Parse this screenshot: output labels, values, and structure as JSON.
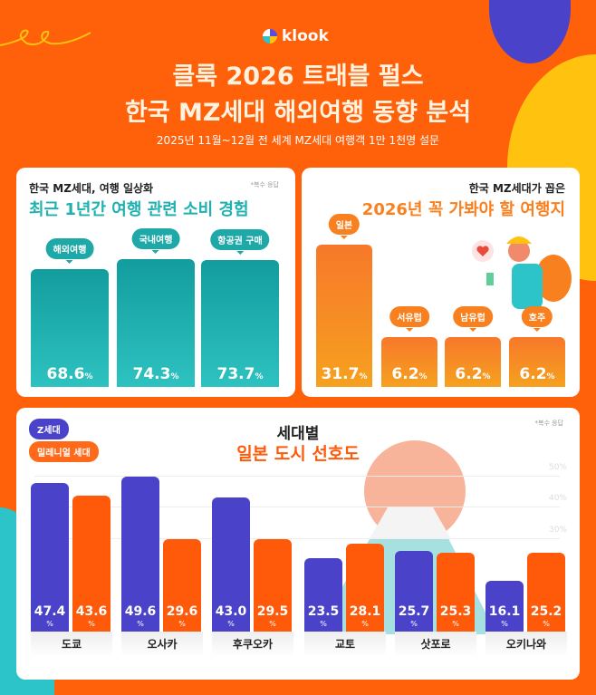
{
  "header": {
    "logo": "klook",
    "title_line1": "클룩 2026 트래블 펄스",
    "title_line2": "한국 MZ세대 해외여행 동향 분석",
    "subtitle": "2025년 11월~12월 전 세계 MZ세대 여행객 1만 1천명 설문"
  },
  "colors": {
    "background": "#ff600a",
    "teal": "#1fb0b0",
    "orange": "#f9801f",
    "z_gen": "#4a43c9",
    "millennial": "#ff5a0a"
  },
  "chart_data": [
    {
      "type": "bar",
      "kicker": "한국 MZ세대, 여행 일상화",
      "title": "최근 1년간 여행 관련 소비 경험",
      "note": "*복수 응답",
      "categories": [
        "해외여행",
        "국내여행",
        "항공권 구매"
      ],
      "values": [
        68.6,
        74.3,
        73.7
      ],
      "value_labels": [
        "68.6",
        "74.3",
        "73.7"
      ],
      "unit": "%"
    },
    {
      "type": "bar",
      "kicker": "한국 MZ세대가 꼽은",
      "title": "2026년 꼭 가봐야 할 여행지",
      "categories": [
        "일본",
        "서유럽",
        "남유럽",
        "호주"
      ],
      "values": [
        31.7,
        6.2,
        6.2,
        6.2
      ],
      "value_labels": [
        "31.7",
        "6.2",
        "6.2",
        "6.2"
      ],
      "unit": "%"
    },
    {
      "type": "bar",
      "kicker": "세대별",
      "title": "일본 도시 선호도",
      "note": "*복수 응답",
      "categories": [
        "도쿄",
        "오사카",
        "후쿠오카",
        "교토",
        "삿포로",
        "오키나와"
      ],
      "ylim": [
        0,
        50
      ],
      "ticks": [
        "30%",
        "40%",
        "50%"
      ],
      "legend": "top-left",
      "unit": "%",
      "series": [
        {
          "name": "Z세대",
          "values": [
            47.4,
            49.6,
            43.0,
            23.5,
            25.7,
            16.1
          ],
          "labels": [
            "47.4",
            "49.6",
            "43.0",
            "23.5",
            "25.7",
            "16.1"
          ]
        },
        {
          "name": "밀레니얼 세대",
          "values": [
            43.6,
            29.6,
            29.5,
            28.1,
            25.3,
            25.2
          ],
          "labels": [
            "43.6",
            "29.6",
            "29.5",
            "28.1",
            "25.3",
            "25.2"
          ]
        }
      ]
    }
  ]
}
